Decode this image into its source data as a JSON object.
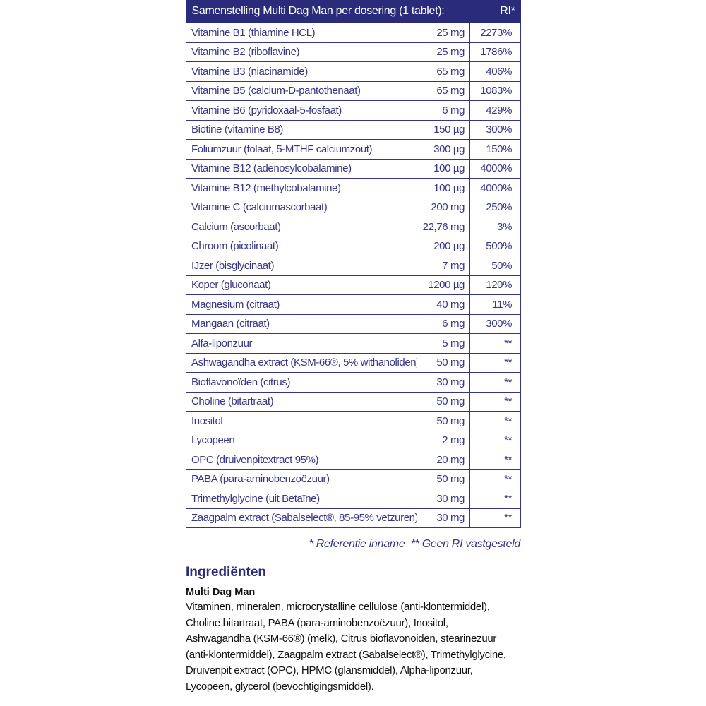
{
  "table": {
    "header": {
      "title": "Samenstelling Multi Dag Man per dosering (1 tablet):",
      "ri": "RI*"
    },
    "rows": [
      {
        "name": "Vitamine B1 (thiamine HCL)",
        "amount": "25 mg",
        "ri": "2273%"
      },
      {
        "name": "Vitamine B2 (riboflavine)",
        "amount": "25 mg",
        "ri": "1786%"
      },
      {
        "name": "Vitamine B3 (niacinamide)",
        "amount": "65 mg",
        "ri": "406%"
      },
      {
        "name": "Vitamine B5 (calcium-D-pantothenaat)",
        "amount": "65 mg",
        "ri": "1083%"
      },
      {
        "name": "Vitamine B6 (pyridoxaal-5-fosfaat)",
        "amount": "6 mg",
        "ri": "429%"
      },
      {
        "name": "Biotine (vitamine B8)",
        "amount": "150 µg",
        "ri": "300%"
      },
      {
        "name": "Foliumzuur (folaat, 5-MTHF calciumzout)",
        "amount": "300 µg",
        "ri": "150%"
      },
      {
        "name": "Vitamine B12 (adenosylcobalamine)",
        "amount": "100 µg",
        "ri": "4000%"
      },
      {
        "name": "Vitamine B12 (methylcobalamine)",
        "amount": "100 µg",
        "ri": "4000%"
      },
      {
        "name": "Vitamine C (calciumascorbaat)",
        "amount": "200 mg",
        "ri": "250%"
      },
      {
        "name": "Calcium (ascorbaat)",
        "amount": "22,76 mg",
        "ri": "3%"
      },
      {
        "name": "Chroom (picolinaat)",
        "amount": "200 µg",
        "ri": "500%"
      },
      {
        "name": "IJzer (bisglycinaat)",
        "amount": "7 mg",
        "ri": "50%"
      },
      {
        "name": "Koper (gluconaat)",
        "amount": "1200 µg",
        "ri": "120%"
      },
      {
        "name": "Magnesium (citraat)",
        "amount": "40 mg",
        "ri": "11%"
      },
      {
        "name": "Mangaan (citraat)",
        "amount": "6 mg",
        "ri": "300%"
      },
      {
        "name": "Alfa-liponzuur",
        "amount": "5 mg",
        "ri": "**"
      },
      {
        "name": "Ashwagandha extract (KSM-66®, 5% withanoliden)",
        "amount": "50 mg",
        "ri": "**"
      },
      {
        "name": "Bioflavonoïden (citrus)",
        "amount": "30 mg",
        "ri": "**"
      },
      {
        "name": "Choline (bitartraat)",
        "amount": "50 mg",
        "ri": "**"
      },
      {
        "name": "Inositol",
        "amount": "50 mg",
        "ri": "**"
      },
      {
        "name": "Lycopeen",
        "amount": "2 mg",
        "ri": "**"
      },
      {
        "name": "OPC (druivenpitextract 95%)",
        "amount": "20 mg",
        "ri": "**"
      },
      {
        "name": "PABA (para-aminobenzoëzuur)",
        "amount": "50 mg",
        "ri": "**"
      },
      {
        "name": "Trimethylglycine (uit Betaïne)",
        "amount": "30 mg",
        "ri": "**"
      },
      {
        "name": "Zaagpalm extract (Sabalselect®, 85-95% vetzuren)",
        "amount": "30 mg",
        "ri": "**"
      }
    ]
  },
  "legend": "* Referentie inname  ** Geen RI vastgesteld",
  "ingredients": {
    "title": "Ingrediënten",
    "product": "Multi Dag Man",
    "lines": [
      "Vitaminen, mineralen, microcrystalline cellulose (anti-klontermiddel),",
      "Choline bitartraat, PABA (para-aminobenzoëzuur), Inositol,",
      "Ashwagandha (KSM-66®) (melk), Citrus bioflavonoiden, stearinezuur",
      "(anti-klontermiddel), Zaagpalm extract (Sabalselect®), Trimethylglycine,",
      "Druivenpit extract (OPC), HPMC (glansmiddel), Alpha-liponzuur,",
      "Lycopeen, glycerol (bevochtigingsmiddel)."
    ]
  },
  "colors": {
    "header_bg": "#2b2b7c",
    "text_navy": "#35358a"
  }
}
